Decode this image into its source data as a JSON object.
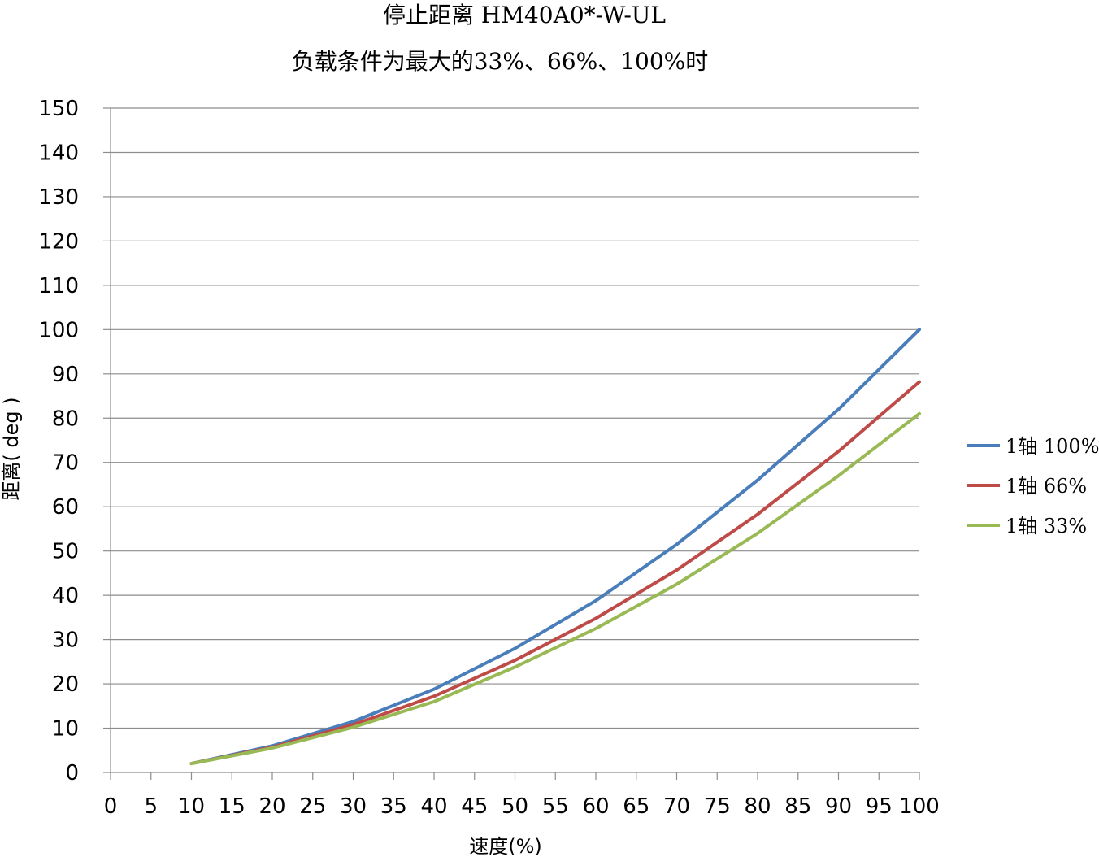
{
  "chart_data": {
    "type": "line",
    "title": "停止距离 HM40A0*-W-UL",
    "subtitle": "负载条件为最大的33%、66%、100%时",
    "xlabel": "速度(%)",
    "ylabel": "距离( deg )",
    "xlim": [
      0,
      100
    ],
    "ylim": [
      0,
      150
    ],
    "x_ticks": [
      "0",
      "5",
      "10",
      "15",
      "20",
      "25",
      "30",
      "35",
      "40",
      "45",
      "50",
      "55",
      "60",
      "65",
      "70",
      "75",
      "80",
      "85",
      "90",
      "95",
      "100"
    ],
    "y_ticks": [
      "0",
      "10",
      "20",
      "30",
      "40",
      "50",
      "60",
      "70",
      "80",
      "90",
      "100",
      "110",
      "120",
      "130",
      "140",
      "150"
    ],
    "grid": true,
    "legend_position": "right",
    "x": [
      10,
      20,
      30,
      40,
      50,
      60,
      70,
      80,
      90,
      100
    ],
    "series": [
      {
        "name": "1轴 100%",
        "color": "#4a7ebb",
        "values": [
          2,
          6,
          11.5,
          18.8,
          28,
          38.8,
          51.5,
          66,
          82,
          100
        ]
      },
      {
        "name": "1轴 66%",
        "color": "#be4b48",
        "values": [
          2,
          5.7,
          10.8,
          17.2,
          25.3,
          34.8,
          45.7,
          58.3,
          72.5,
          88.2
        ]
      },
      {
        "name": "1轴 33%",
        "color": "#98b954",
        "values": [
          2,
          5.5,
          10.2,
          16,
          23.8,
          32.5,
          42.5,
          54,
          67,
          81
        ]
      }
    ]
  }
}
